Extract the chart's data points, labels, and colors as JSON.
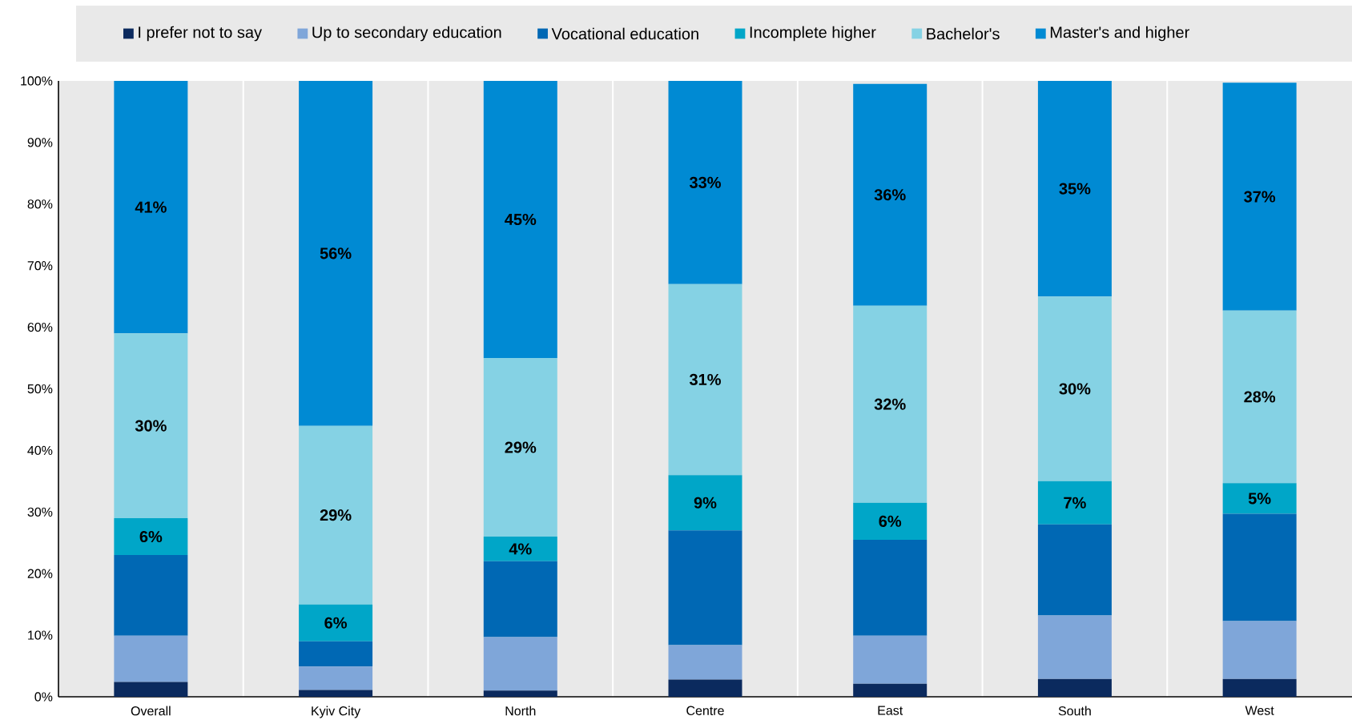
{
  "chart_data": {
    "type": "bar",
    "stacked": true,
    "categories": [
      "Overall",
      "Kyiv City",
      "North",
      "Centre",
      "East",
      "South",
      "West"
    ],
    "series": [
      {
        "name": "I prefer not to say",
        "color": "#0b2a5e",
        "values": [
          2.4,
          1.1,
          1.0,
          2.8,
          2.1,
          2.9,
          2.9
        ]
      },
      {
        "name": "Up to secondary education",
        "color": "#7fa6d9",
        "values": [
          7.5,
          3.8,
          8.7,
          5.6,
          7.8,
          10.3,
          9.4
        ]
      },
      {
        "name": "Vocational education",
        "color": "#0068b4",
        "values": [
          13.1,
          4.1,
          12.3,
          18.6,
          15.6,
          14.8,
          17.4
        ]
      },
      {
        "name": "Incomplete higher",
        "color": "#00a6c8",
        "values": [
          6,
          6,
          4,
          9,
          6,
          7,
          5
        ],
        "value_labels": [
          "6%",
          "6%",
          "4%",
          "9%",
          "6%",
          "7%",
          "5%"
        ]
      },
      {
        "name": "Bachelor's",
        "color": "#85d2e4",
        "values": [
          30,
          29,
          29,
          31,
          32,
          30,
          28
        ],
        "value_labels": [
          "30%",
          "29%",
          "29%",
          "31%",
          "32%",
          "30%",
          "28%"
        ]
      },
      {
        "name": "Master's and higher",
        "color": "#008ad3",
        "values": [
          41,
          56,
          45,
          33,
          36,
          35,
          37
        ],
        "value_labels": [
          "41%",
          "56%",
          "45%",
          "33%",
          "36%",
          "35%",
          "37%"
        ]
      }
    ],
    "ylim": [
      0,
      100
    ],
    "yticks": [
      {
        "value": 0,
        "label": "0%"
      },
      {
        "value": 10,
        "label": "10%"
      },
      {
        "value": 20,
        "label": "20%"
      },
      {
        "value": 30,
        "label": "30%"
      },
      {
        "value": 40,
        "label": "40%"
      },
      {
        "value": 50,
        "label": "50%"
      },
      {
        "value": 60,
        "label": "60%"
      },
      {
        "value": 70,
        "label": "70%"
      },
      {
        "value": 80,
        "label": "80%"
      },
      {
        "value": 90,
        "label": "90%"
      },
      {
        "value": 100,
        "label": "100%"
      }
    ],
    "grid": "x",
    "legend": "top"
  }
}
